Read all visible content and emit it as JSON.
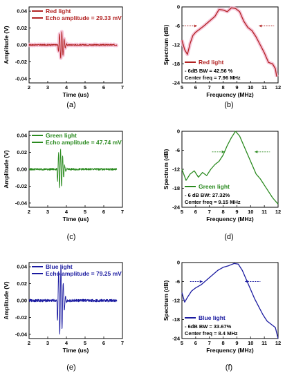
{
  "figure": {
    "panel_labels": [
      "(a)",
      "(b)",
      "(c)",
      "(d)",
      "(e)",
      "(f)"
    ]
  },
  "colors": {
    "red": "#b22222",
    "red_glow": "#f4b6cf",
    "green": "#2a8a1f",
    "blue": "#1a1aa0",
    "axis": "#000000"
  },
  "chart_data": [
    {
      "id": "a",
      "type": "line",
      "panel": "(a)",
      "xlabel": "Time (us)",
      "ylabel": "Amplitude (V)",
      "xlim": [
        2,
        7
      ],
      "ylim": [
        -0.045,
        0.045
      ],
      "xticks": [
        2,
        3,
        4,
        5,
        6,
        7
      ],
      "yticks": [
        -0.04,
        -0.02,
        0.0,
        0.02,
        0.04
      ],
      "ytick_labels": [
        "-0.04",
        "-0.02",
        "0.00",
        "0.02",
        "0.04"
      ],
      "series": [
        {
          "name": "Red light",
          "color_key": "red",
          "values": []
        }
      ],
      "legend": {
        "entries": [
          "Red light"
        ],
        "annotation": "Echo amplitude = 29.33 mV"
      },
      "signal": {
        "t0": 3.6,
        "amplitude": 0.016,
        "duration": 0.5,
        "freq": 8,
        "noise": 0.0008,
        "t_end": 6.7
      }
    },
    {
      "id": "b",
      "type": "line",
      "panel": "(b)",
      "xlabel": "Frequency (MHz)",
      "ylabel": "Spectrum (dB)",
      "xlim": [
        5,
        12
      ],
      "ylim": [
        -24,
        0
      ],
      "xticks": [
        5,
        6,
        7,
        8,
        9,
        10,
        11,
        12
      ],
      "yticks": [
        -24,
        -18,
        -12,
        -6,
        0
      ],
      "series": [
        {
          "name": "Red light",
          "color_key": "red",
          "x": [
            5.0,
            5.2,
            5.4,
            5.6,
            5.8,
            6.0,
            6.3,
            6.6,
            7.0,
            7.4,
            7.7,
            8.0,
            8.3,
            8.6,
            8.9,
            9.2,
            9.5,
            9.8,
            10.1,
            10.4,
            10.7,
            11.0,
            11.3,
            11.6,
            11.8,
            11.9
          ],
          "values": [
            -10.5,
            -13.5,
            -15.0,
            -11.5,
            -9.0,
            -8.0,
            -7.0,
            -6.0,
            -4.5,
            -3.0,
            -0.8,
            -1.0,
            -1.5,
            -0.3,
            -0.5,
            -1.5,
            -4.5,
            -6.5,
            -7.5,
            -9.5,
            -12.0,
            -14.5,
            -17.5,
            -18.0,
            -19.5,
            -22.0
          ]
        }
      ],
      "legend": {
        "entries": [
          "Red light"
        ]
      },
      "annotations": [
        "- 6dB BW = 42.56 %",
        "Center freq = 7.96 MHz"
      ],
      "bw_arrows": {
        "y": -6,
        "x_left": 6.1,
        "x_right": 10.6
      }
    },
    {
      "id": "c",
      "type": "line",
      "panel": "(c)",
      "xlabel": "Time (us)",
      "ylabel": "Amplitude (V)",
      "xlim": [
        2,
        7
      ],
      "ylim": [
        -0.045,
        0.045
      ],
      "xticks": [
        2,
        3,
        4,
        5,
        6,
        7
      ],
      "yticks": [
        -0.04,
        -0.02,
        0.0,
        0.02,
        0.04
      ],
      "ytick_labels": [
        "-0.04",
        "-0.02",
        "0.00",
        "0.02",
        "0.04"
      ],
      "series": [
        {
          "name": "Green light",
          "color_key": "green",
          "values": []
        }
      ],
      "legend": {
        "entries": [
          "Green light"
        ],
        "annotation": "Echo amplitude = 47.74 mV"
      },
      "signal": {
        "t0": 3.55,
        "amplitude": 0.024,
        "duration": 0.55,
        "freq": 9,
        "noise": 0.0012,
        "t_end": 6.7
      }
    },
    {
      "id": "d",
      "type": "line",
      "panel": "(d)",
      "xlabel": "Frequency (MHz)",
      "ylabel": "Spectrum (dB)",
      "xlim": [
        5,
        12
      ],
      "ylim": [
        -24,
        0
      ],
      "xticks": [
        5,
        6,
        7,
        8,
        9,
        10,
        11,
        12
      ],
      "yticks": [
        -24,
        -18,
        -12,
        -6,
        0
      ],
      "series": [
        {
          "name": "Green light",
          "color_key": "green",
          "x": [
            5.0,
            5.3,
            5.6,
            5.9,
            6.2,
            6.5,
            6.8,
            7.1,
            7.4,
            7.7,
            8.0,
            8.3,
            8.6,
            8.9,
            9.2,
            9.5,
            9.8,
            10.1,
            10.4,
            10.7,
            11.0,
            11.3,
            11.6,
            12.0
          ],
          "values": [
            -12.0,
            -15.5,
            -13.5,
            -12.5,
            -14.5,
            -13.0,
            -14.0,
            -12.0,
            -10.5,
            -9.5,
            -7.5,
            -4.5,
            -2.0,
            0.0,
            -1.5,
            -4.5,
            -7.5,
            -10.5,
            -13.5,
            -15.0,
            -17.0,
            -19.0,
            -21.0,
            -23.0
          ]
        }
      ],
      "legend": {
        "entries": [
          "Green light"
        ]
      },
      "annotations": [
        "- 6 dB BW: 27.32%",
        "Center freq = 9.15 MHz"
      ],
      "bw_arrows": {
        "y": -6.5,
        "x_left": 8.1,
        "x_right": 10.3
      }
    },
    {
      "id": "e",
      "type": "line",
      "panel": "(e)",
      "xlabel": "Time (us)",
      "ylabel": "Amplitude (V)",
      "xlim": [
        2,
        7
      ],
      "ylim": [
        -0.045,
        0.045
      ],
      "xticks": [
        2,
        3,
        4,
        5,
        6,
        7
      ],
      "yticks": [
        -0.04,
        -0.02,
        0.0,
        0.02,
        0.04
      ],
      "ytick_labels": [
        "-0.04",
        "-0.02",
        "0.00",
        "0.02",
        "0.04"
      ],
      "series": [
        {
          "name": "Blue light",
          "color_key": "blue",
          "values": []
        }
      ],
      "legend": {
        "entries": [
          "Blue light"
        ],
        "annotation": "Echo amplitude = 79.25 mV"
      },
      "signal": {
        "t0": 3.55,
        "amplitude": 0.042,
        "duration": 0.55,
        "freq": 8,
        "noise": 0.0016,
        "t_end": 6.7
      }
    },
    {
      "id": "f",
      "type": "line",
      "panel": "(f)",
      "xlabel": "Frequency (MHz)",
      "ylabel": "Spectrum (dB)",
      "xlim": [
        5,
        12
      ],
      "ylim": [
        -24,
        0
      ],
      "xticks": [
        5,
        6,
        7,
        8,
        9,
        10,
        11,
        12
      ],
      "yticks": [
        -24,
        -18,
        -12,
        -6,
        0
      ],
      "series": [
        {
          "name": "Blue light",
          "color_key": "blue",
          "x": [
            5.0,
            5.2,
            5.4,
            5.7,
            6.0,
            6.4,
            6.8,
            7.2,
            7.6,
            8.0,
            8.4,
            8.8,
            9.1,
            9.4,
            9.7,
            10.0,
            10.3,
            10.6,
            10.9,
            11.2,
            11.5,
            11.8,
            12.0
          ],
          "values": [
            -9.5,
            -12.5,
            -11.0,
            -9.0,
            -8.0,
            -7.0,
            -5.5,
            -4.0,
            -2.5,
            -1.5,
            -1.0,
            -0.3,
            -0.5,
            -2.5,
            -5.5,
            -8.5,
            -11.5,
            -14.0,
            -16.5,
            -18.5,
            -19.5,
            -20.5,
            -24.0
          ]
        }
      ],
      "legend": {
        "entries": [
          "Blue light"
        ]
      },
      "annotations": [
        "- 6dB BW = 33.67%",
        "Center freq = 8.4 MHz"
      ],
      "bw_arrows": {
        "y": -6,
        "x_left": 6.5,
        "x_right": 9.6
      }
    }
  ]
}
